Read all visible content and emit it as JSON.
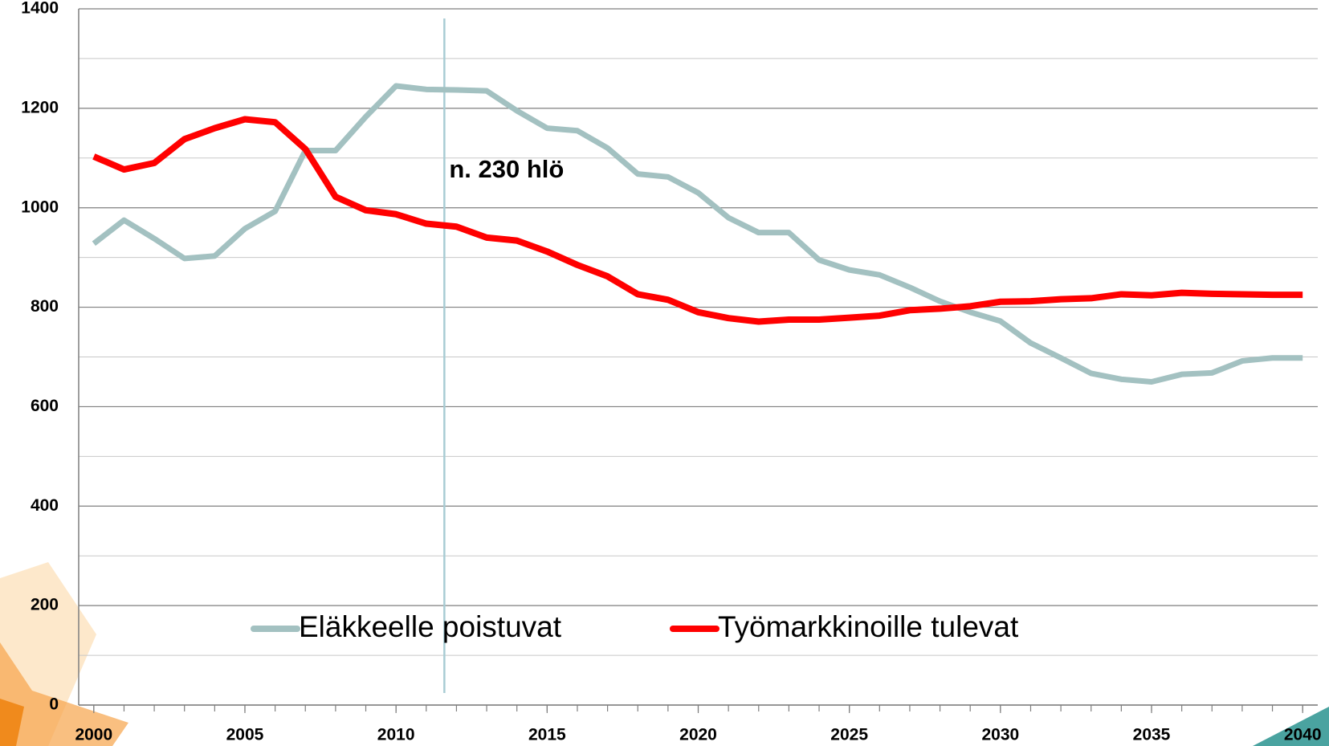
{
  "chart_data": {
    "type": "line",
    "x": [
      2000,
      2001,
      2002,
      2003,
      2004,
      2005,
      2006,
      2007,
      2008,
      2009,
      2010,
      2011,
      2012,
      2013,
      2014,
      2015,
      2016,
      2017,
      2018,
      2019,
      2020,
      2021,
      2022,
      2023,
      2024,
      2025,
      2026,
      2027,
      2028,
      2029,
      2030,
      2031,
      2032,
      2033,
      2034,
      2035,
      2036,
      2037,
      2038,
      2039,
      2040
    ],
    "series": [
      {
        "name": "Eläkkeelle poistuvat",
        "color": "#a3c1c1",
        "values": [
          928,
          975,
          938,
          898,
          903,
          958,
          993,
          1115,
          1115,
          1183,
          1245,
          1238,
          1237,
          1235,
          1195,
          1160,
          1155,
          1120,
          1068,
          1062,
          1030,
          980,
          950,
          950,
          895,
          875,
          865,
          840,
          812,
          790,
          772,
          728,
          698,
          667,
          655,
          650,
          665,
          668,
          692,
          698,
          698
        ]
      },
      {
        "name": "Työmarkkinoille tulevat",
        "color": "#ff0000",
        "values": [
          1103,
          1077,
          1090,
          1138,
          1160,
          1178,
          1172,
          1118,
          1022,
          995,
          987,
          968,
          962,
          940,
          934,
          912,
          885,
          862,
          826,
          815,
          790,
          778,
          771,
          775,
          775,
          779,
          783,
          794,
          797,
          802,
          811,
          812,
          816,
          818,
          826,
          824,
          829,
          827,
          826,
          825,
          825
        ]
      }
    ],
    "xlim": [
      1999.5,
      2040.5
    ],
    "xticks": [
      2000,
      2005,
      2010,
      2015,
      2020,
      2025,
      2030,
      2035,
      2040
    ],
    "ylim": [
      0,
      1400
    ],
    "yticks": [
      0,
      200,
      400,
      600,
      800,
      1000,
      1200,
      1400
    ],
    "yminorticks": [
      100,
      300,
      500,
      700,
      900,
      1100,
      1300
    ],
    "grid": true,
    "annotation": {
      "text": "n. 230 hlö",
      "x": 2011.6
    }
  }
}
